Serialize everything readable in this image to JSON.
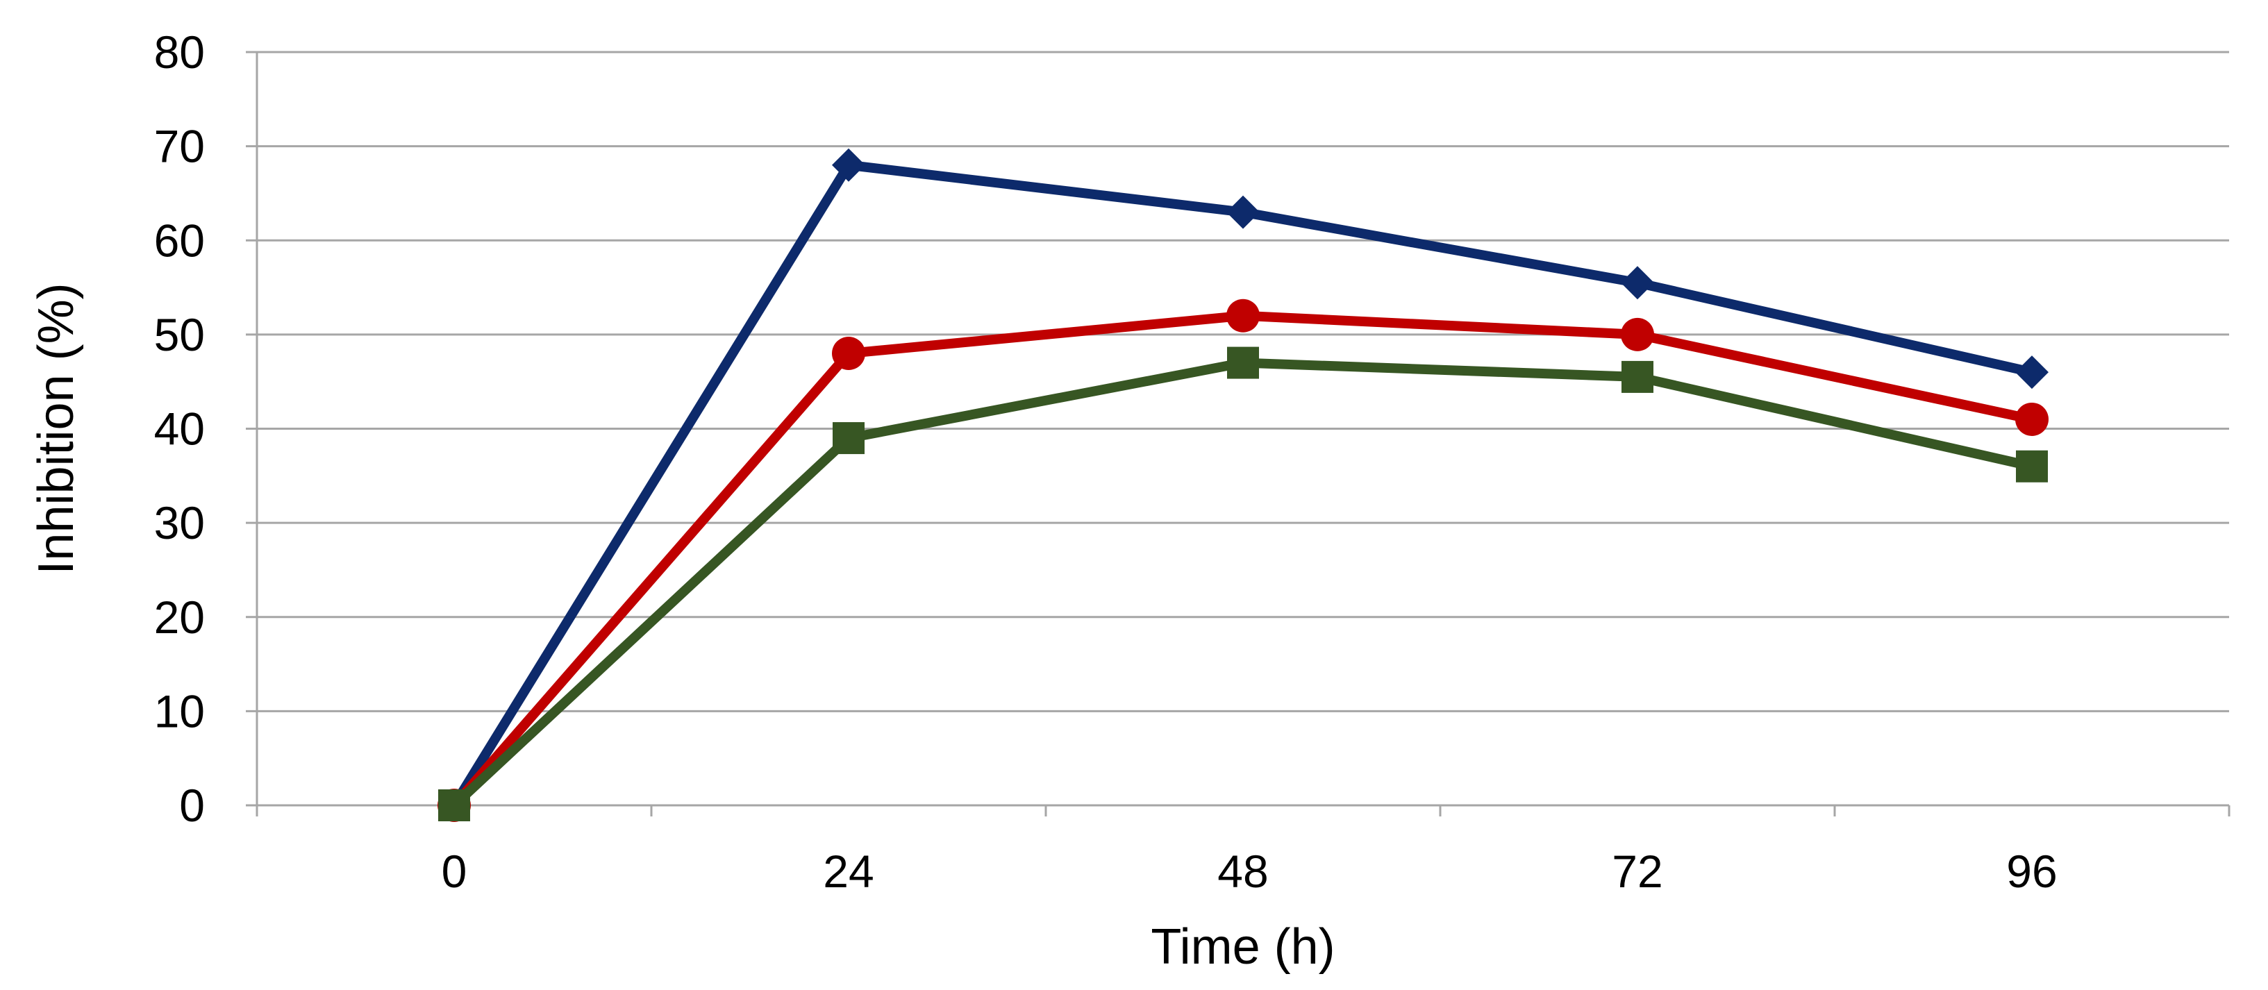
{
  "chart_data": {
    "type": "line",
    "title": "",
    "xlabel": "Time (h)",
    "ylabel": "Inhibition (%)",
    "categories": [
      "0",
      "24",
      "48",
      "72",
      "96"
    ],
    "x": [
      0,
      24,
      48,
      72,
      96
    ],
    "ylim": [
      0,
      80
    ],
    "yticks": [
      0,
      10,
      20,
      30,
      40,
      50,
      60,
      70,
      80
    ],
    "y_tick_labels": [
      "0",
      "10",
      "20",
      "30",
      "40",
      "50",
      "60",
      "70",
      "80"
    ],
    "grid": true,
    "legend": "none",
    "series": [
      {
        "values": [
          0,
          68,
          63,
          55.5,
          46
        ],
        "color": "#0d2a6b",
        "marker": "diamond"
      },
      {
        "values": [
          0,
          48,
          52,
          50,
          41
        ],
        "color": "#c00000",
        "marker": "circle"
      },
      {
        "values": [
          0,
          39,
          47,
          45.5,
          36
        ],
        "color": "#375623",
        "marker": "square"
      }
    ]
  }
}
